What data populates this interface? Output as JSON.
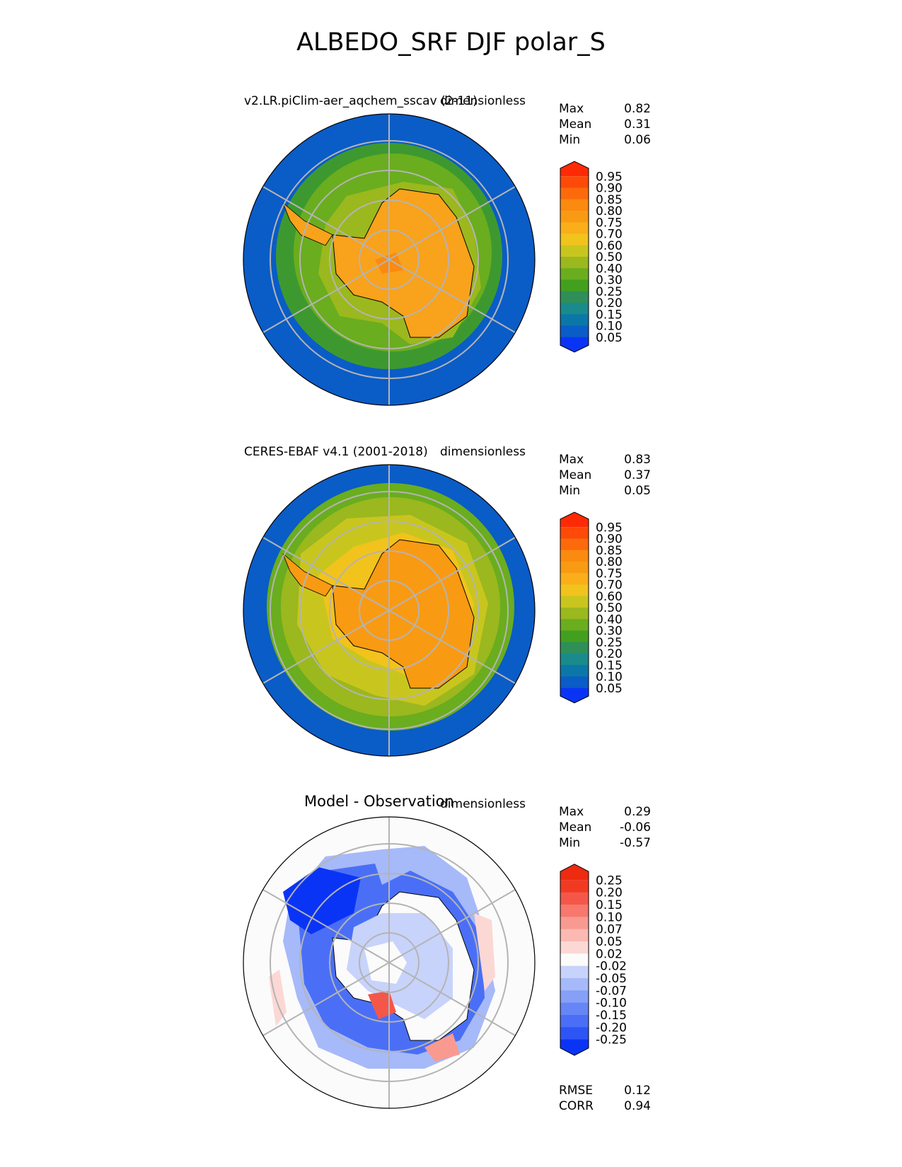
{
  "title": "ALBEDO_SRF DJF polar_S",
  "colors": {
    "ocean": "#0a5cc7",
    "ice": "#f9a21b",
    "diff_neg": "#1a3ef0",
    "diff_pos": "#f23a22",
    "grid": "#b4b4b4"
  },
  "panels": [
    {
      "title": "v2.LR.piClim-aer_aqchem_sscav (2-11)",
      "units": "dimensionless",
      "stats": [
        {
          "label": "Max",
          "value": "0.82"
        },
        {
          "label": "Mean",
          "value": "0.31"
        },
        {
          "label": "Min",
          "value": "0.06"
        }
      ],
      "colorbar_labels": [
        "0.95",
        "0.90",
        "0.85",
        "0.80",
        "0.75",
        "0.70",
        "0.60",
        "0.50",
        "0.40",
        "0.30",
        "0.25",
        "0.20",
        "0.15",
        "0.10",
        "0.05"
      ]
    },
    {
      "title": "CERES-EBAF v4.1 (2001-2018)",
      "units": "dimensionless",
      "stats": [
        {
          "label": "Max",
          "value": "0.83"
        },
        {
          "label": "Mean",
          "value": "0.37"
        },
        {
          "label": "Min",
          "value": "0.05"
        }
      ],
      "colorbar_labels": [
        "0.95",
        "0.90",
        "0.85",
        "0.80",
        "0.75",
        "0.70",
        "0.60",
        "0.50",
        "0.40",
        "0.30",
        "0.25",
        "0.20",
        "0.15",
        "0.10",
        "0.05"
      ]
    },
    {
      "title": "Model - Observation",
      "units": "dimensionless",
      "stats": [
        {
          "label": "Max",
          "value": "0.29"
        },
        {
          "label": "Mean",
          "value": "-0.06"
        },
        {
          "label": "Min",
          "value": "-0.57"
        }
      ],
      "colorbar_labels": [
        "0.25",
        "0.20",
        "0.15",
        "0.10",
        "0.07",
        "0.05",
        "0.02",
        "-0.02",
        "-0.05",
        "-0.07",
        "-0.10",
        "-0.15",
        "-0.20",
        "-0.25"
      ],
      "bottom_stats": [
        {
          "label": "RMSE",
          "value": "0.12"
        },
        {
          "label": "CORR",
          "value": "0.94"
        }
      ]
    }
  ],
  "chart_data": [
    {
      "type": "heatmap",
      "title": "v2.LR.piClim-aer_aqchem_sscav (2-11)",
      "units": "dimensionless",
      "projection": "south polar stereographic",
      "max": 0.82,
      "mean": 0.31,
      "min": 0.06,
      "levels": [
        0.05,
        0.1,
        0.15,
        0.2,
        0.25,
        0.3,
        0.4,
        0.5,
        0.6,
        0.7,
        0.75,
        0.8,
        0.85,
        0.9,
        0.95
      ],
      "level_colors": [
        "#0a34f5",
        "#0a5cc7",
        "#0b77a8",
        "#1a8a8c",
        "#2f8f58",
        "#43a01e",
        "#6aad1e",
        "#9bb81e",
        "#c8c61e",
        "#f1c31c",
        "#f9ae1a",
        "#f99a13",
        "#fb8a10",
        "#fc6a0c",
        "#fd4a08",
        "#fe2a05"
      ],
      "extend": "both"
    },
    {
      "type": "heatmap",
      "title": "CERES-EBAF v4.1 (2001-2018)",
      "units": "dimensionless",
      "projection": "south polar stereographic",
      "max": 0.83,
      "mean": 0.37,
      "min": 0.05,
      "levels": [
        0.05,
        0.1,
        0.15,
        0.2,
        0.25,
        0.3,
        0.4,
        0.5,
        0.6,
        0.7,
        0.75,
        0.8,
        0.85,
        0.9,
        0.95
      ],
      "level_colors": [
        "#0a34f5",
        "#0a5cc7",
        "#0b77a8",
        "#1a8a8c",
        "#2f8f58",
        "#43a01e",
        "#6aad1e",
        "#9bb81e",
        "#c8c61e",
        "#f1c31c",
        "#f9ae1a",
        "#f99a13",
        "#fb8a10",
        "#fc6a0c",
        "#fd4a08",
        "#fe2a05"
      ],
      "extend": "both"
    },
    {
      "type": "heatmap",
      "title": "Model - Observation",
      "units": "dimensionless",
      "projection": "south polar stereographic",
      "max": 0.29,
      "mean": -0.06,
      "min": -0.57,
      "rmse": 0.12,
      "corr": 0.94,
      "levels": [
        -0.25,
        -0.2,
        -0.15,
        -0.1,
        -0.07,
        -0.05,
        -0.02,
        0.02,
        0.05,
        0.07,
        0.1,
        0.15,
        0.2,
        0.25
      ],
      "level_colors": [
        "#0a34f5",
        "#2d55f5",
        "#4a6ff6",
        "#6686f7",
        "#86a0f8",
        "#a6b9f9",
        "#c8d3fb",
        "#fbfbfb",
        "#fcd8d4",
        "#fbb9b2",
        "#f99a90",
        "#f7786c",
        "#f4574a",
        "#f23a22",
        "#ee2a10"
      ],
      "extend": "both"
    }
  ]
}
